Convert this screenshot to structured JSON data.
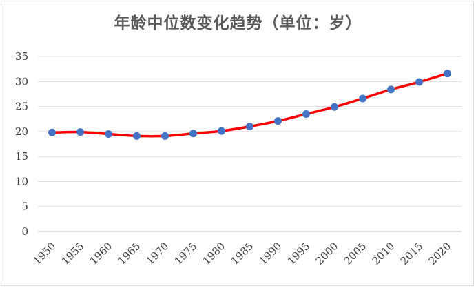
{
  "chart_data": {
    "type": "line",
    "title": "年龄中位数变化趋势（单位：岁）",
    "x": [
      1950,
      1955,
      1960,
      1965,
      1970,
      1975,
      1980,
      1985,
      1990,
      1995,
      2000,
      2005,
      2010,
      2015,
      2020
    ],
    "series": [
      {
        "values": [
          19.8,
          19.9,
          19.5,
          19.1,
          19.1,
          19.6,
          20.1,
          21.0,
          22.1,
          23.5,
          24.9,
          26.6,
          28.4,
          29.9,
          31.6
        ],
        "line_color": "#ff0000",
        "marker_color": "#4472c4"
      }
    ],
    "ylim": [
      0,
      35
    ],
    "yticks": [
      0,
      5,
      10,
      15,
      20,
      25,
      30,
      35
    ],
    "xlabel": "",
    "ylabel": "",
    "grid": "horizontal",
    "legend": "none"
  }
}
